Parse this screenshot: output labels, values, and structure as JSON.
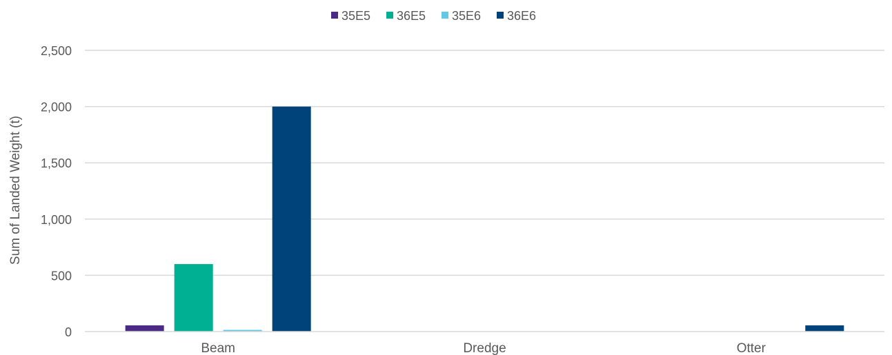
{
  "chart_data": {
    "type": "bar",
    "categories": [
      "Beam",
      "Dredge",
      "Otter"
    ],
    "series": [
      {
        "name": "35E5",
        "color": "#4b2a85",
        "values": [
          55,
          0,
          0
        ]
      },
      {
        "name": "36E5",
        "color": "#00b092",
        "values": [
          600,
          0,
          0
        ]
      },
      {
        "name": "35E6",
        "color": "#5fc9e6",
        "values": [
          15,
          0,
          0
        ]
      },
      {
        "name": "36E6",
        "color": "#00427a",
        "values": [
          2000,
          0,
          55
        ]
      }
    ],
    "ylabel": "Sum of Landed Weight (t)",
    "ylim": [
      0,
      2500
    ],
    "yticks": [
      0,
      500,
      1000,
      1500,
      2000,
      2500
    ],
    "ytick_labels": [
      "0",
      "500",
      "1,000",
      "1,500",
      "2,000",
      "2,500"
    ],
    "grid": true,
    "legend_position": "top-center"
  }
}
